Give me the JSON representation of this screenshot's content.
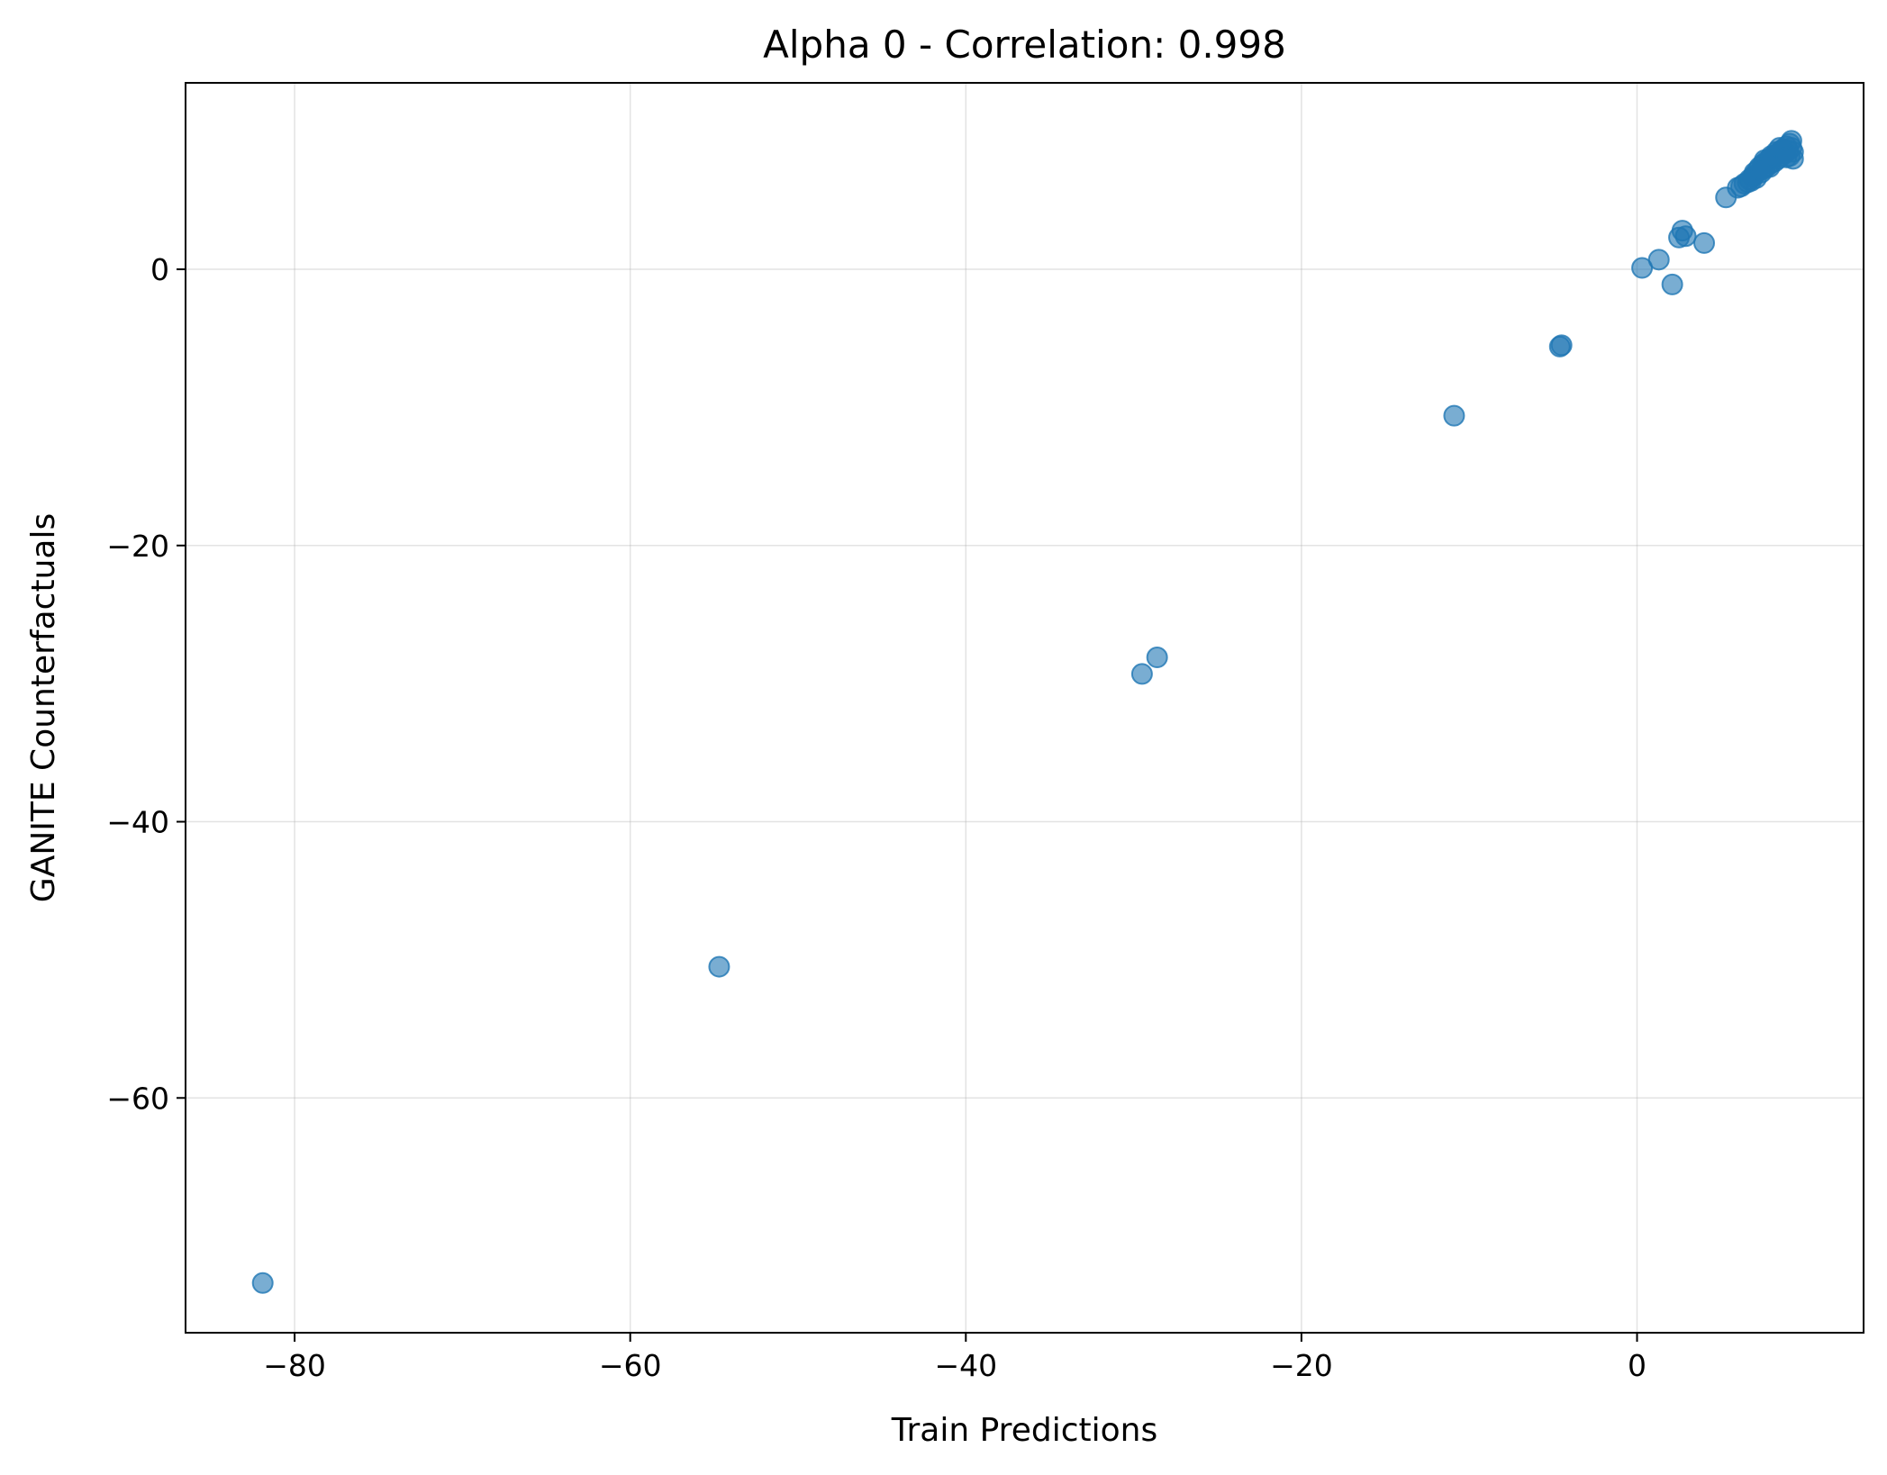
{
  "chart_data": {
    "type": "scatter",
    "title": "Alpha 0 - Correlation: 0.998",
    "xlabel": "Train Predictions",
    "ylabel": "GANITE Counterfactuals",
    "xlim": [
      -86.5,
      13.5
    ],
    "ylim": [
      -77.0,
      13.5
    ],
    "xticks": [
      -80,
      -60,
      -40,
      -20,
      0
    ],
    "xtick_labels": [
      "−80",
      "−60",
      "−40",
      "−20",
      "0"
    ],
    "yticks": [
      0,
      -20,
      -40,
      -60
    ],
    "ytick_labels": [
      "0",
      "−20",
      "−40",
      "−60"
    ],
    "grid": true,
    "marker_color": "#1f77b4",
    "marker_alpha": 0.6,
    "series": [
      {
        "points": [
          [
            -81.9,
            -73.4
          ],
          [
            -54.7,
            -50.5
          ],
          [
            -29.5,
            -29.3
          ],
          [
            -28.6,
            -28.1
          ],
          [
            -10.9,
            -10.6
          ],
          [
            -4.6,
            -5.6
          ],
          [
            -4.5,
            -5.5
          ],
          [
            0.3,
            0.1
          ],
          [
            1.3,
            0.7
          ],
          [
            2.1,
            -1.1
          ],
          [
            2.5,
            2.3
          ],
          [
            2.7,
            2.8
          ],
          [
            2.9,
            2.4
          ],
          [
            4.0,
            1.9
          ],
          [
            5.3,
            5.2
          ],
          [
            6.0,
            5.9
          ],
          [
            6.2,
            6.0
          ],
          [
            6.4,
            6.2
          ],
          [
            6.6,
            6.3
          ],
          [
            6.7,
            6.5
          ],
          [
            6.9,
            6.7
          ],
          [
            7.0,
            7.0
          ],
          [
            7.1,
            6.6
          ],
          [
            7.2,
            7.2
          ],
          [
            7.3,
            7.4
          ],
          [
            7.4,
            7.0
          ],
          [
            7.5,
            7.6
          ],
          [
            7.6,
            7.3
          ],
          [
            7.7,
            7.8
          ],
          [
            7.8,
            7.5
          ],
          [
            7.9,
            8.0
          ],
          [
            8.0,
            7.7
          ],
          [
            8.1,
            8.1
          ],
          [
            8.2,
            7.8
          ],
          [
            8.3,
            8.3
          ],
          [
            8.4,
            8.0
          ],
          [
            8.5,
            8.5
          ],
          [
            8.6,
            8.2
          ],
          [
            8.7,
            8.7
          ],
          [
            8.8,
            8.4
          ],
          [
            8.9,
            8.9
          ],
          [
            9.0,
            8.6
          ],
          [
            9.1,
            9.1
          ],
          [
            9.2,
            8.8
          ],
          [
            9.2,
            9.3
          ],
          [
            9.3,
            8.5
          ],
          [
            9.3,
            8.0
          ],
          [
            9.1,
            8.2
          ],
          [
            8.6,
            8.6
          ],
          [
            8.3,
            8.5
          ],
          [
            7.9,
            7.4
          ],
          [
            7.6,
            7.9
          ],
          [
            6.8,
            6.4
          ],
          [
            7.0,
            6.8
          ],
          [
            7.4,
            7.2
          ],
          [
            8.0,
            8.2
          ],
          [
            8.5,
            8.8
          ],
          [
            8.9,
            8.1
          ]
        ]
      }
    ]
  }
}
